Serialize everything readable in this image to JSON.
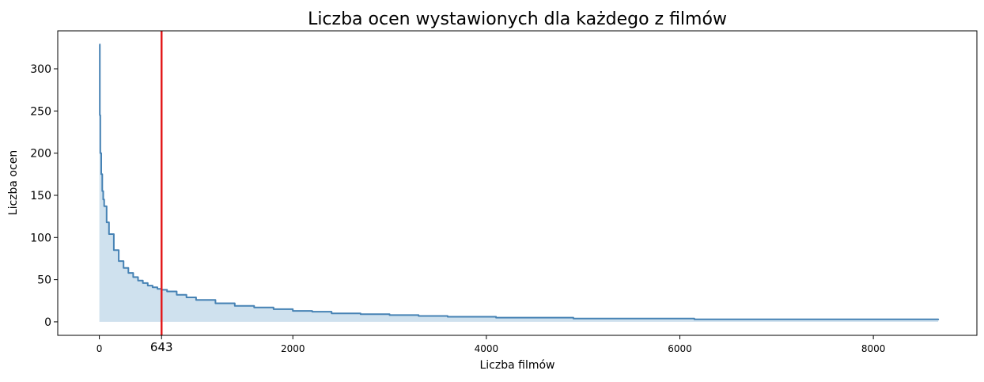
{
  "chart_data": {
    "type": "area",
    "title": "Liczba ocen wystawionych dla każdego z filmów",
    "xlabel": "Liczba filmów",
    "ylabel": "Liczba ocen",
    "xlim": [
      -430,
      9070
    ],
    "ylim": [
      -16,
      345
    ],
    "x_ticks": [
      {
        "value": 0,
        "label": "0"
      },
      {
        "value": 2000,
        "label": "2000"
      },
      {
        "value": 4000,
        "label": "4000"
      },
      {
        "value": 6000,
        "label": "6000"
      },
      {
        "value": 8000,
        "label": "8000"
      }
    ],
    "y_ticks": [
      {
        "value": 0,
        "label": "0"
      },
      {
        "value": 50,
        "label": "50"
      },
      {
        "value": 100,
        "label": "100"
      },
      {
        "value": 150,
        "label": "150"
      },
      {
        "value": 200,
        "label": "200"
      },
      {
        "value": 250,
        "label": "250"
      },
      {
        "value": 300,
        "label": "300"
      }
    ],
    "marker": {
      "value": 643,
      "label": "643",
      "color": "#e31a1c"
    },
    "series": [
      {
        "line_color": "#4682b4",
        "fill_color": "#cfe1ee",
        "x": [
          0,
          5,
          10,
          20,
          30,
          40,
          50,
          75,
          100,
          150,
          200,
          250,
          300,
          350,
          400,
          450,
          500,
          550,
          600,
          643,
          700,
          800,
          900,
          1000,
          1200,
          1400,
          1600,
          1800,
          2000,
          2200,
          2400,
          2700,
          3000,
          3300,
          3600,
          4100,
          4900,
          6150,
          8670
        ],
        "y": [
          329,
          245,
          200,
          175,
          155,
          145,
          137,
          118,
          104,
          85,
          72,
          64,
          58,
          53,
          49,
          46,
          43,
          41,
          39,
          38,
          36,
          32,
          29,
          26,
          22,
          19,
          17,
          15,
          13,
          12,
          10,
          9,
          8,
          7,
          6,
          5,
          4,
          3,
          2
        ]
      }
    ]
  }
}
